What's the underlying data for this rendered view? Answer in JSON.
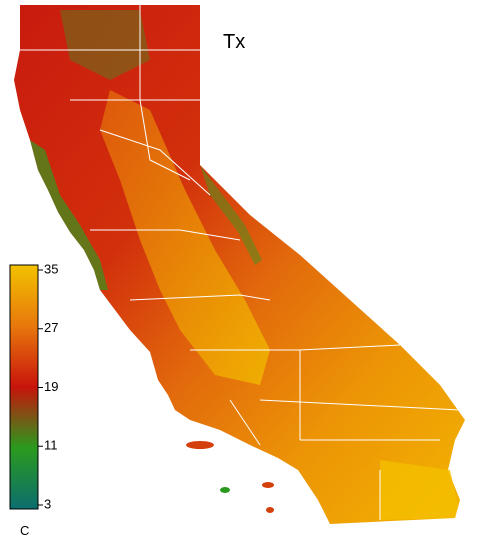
{
  "map": {
    "title": "Tx",
    "colorbar": {
      "unit": "C",
      "lim": [
        3,
        35
      ],
      "ticks": [
        35,
        27,
        19,
        11,
        3
      ],
      "colors": [
        "#f2c200",
        "#e8780c",
        "#c8140c",
        "#2a9a1e",
        "#0c6e6e"
      ]
    }
  }
}
